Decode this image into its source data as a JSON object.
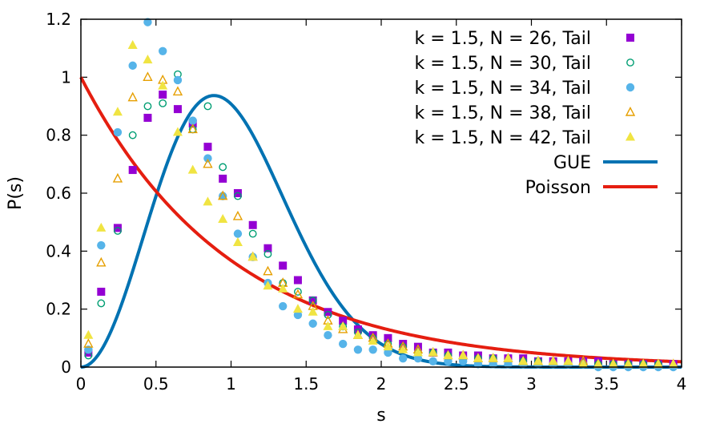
{
  "chart_data": {
    "type": "scatter",
    "title": "",
    "xlabel": "s",
    "ylabel": "P(s)",
    "xlim": [
      0,
      4
    ],
    "ylim": [
      0,
      1.2
    ],
    "xticks": [
      0,
      0.5,
      1,
      1.5,
      2,
      2.5,
      3,
      3.5,
      4
    ],
    "xtick_labels": [
      "0",
      "0.5",
      "1",
      "1.5",
      "2",
      "2.5",
      "3",
      "3.5",
      "4"
    ],
    "yticks": [
      0,
      0.2,
      0.4,
      0.6,
      0.8,
      1,
      1.2
    ],
    "ytick_labels": [
      "0",
      "0.2",
      "0.4",
      "0.6",
      "0.8",
      "1",
      "1.2"
    ],
    "legend_position": "top-right",
    "x": [
      0.05,
      0.135,
      0.245,
      0.345,
      0.445,
      0.545,
      0.645,
      0.745,
      0.845,
      0.945,
      1.045,
      1.145,
      1.245,
      1.345,
      1.445,
      1.545,
      1.645,
      1.745,
      1.845,
      1.945,
      2.045,
      2.145,
      2.245,
      2.345,
      2.445,
      2.545,
      2.645,
      2.745,
      2.845,
      2.945,
      3.045,
      3.145,
      3.245,
      3.345,
      3.445,
      3.545,
      3.645,
      3.745,
      3.845,
      3.945
    ],
    "series": [
      {
        "name": "k = 1.5, N = 26, Tail",
        "marker": "square-filled",
        "color": "#9400d3",
        "values": [
          0.05,
          0.26,
          0.48,
          0.68,
          0.86,
          0.94,
          0.89,
          0.84,
          0.76,
          0.65,
          0.6,
          0.49,
          0.41,
          0.35,
          0.3,
          0.23,
          0.19,
          0.16,
          0.13,
          0.11,
          0.1,
          0.08,
          0.07,
          0.05,
          0.05,
          0.04,
          0.04,
          0.03,
          0.03,
          0.03,
          0.02,
          0.02,
          0.02,
          0.02,
          0.02,
          0.01,
          0.01,
          0.01,
          0.01,
          0.01
        ]
      },
      {
        "name": "k = 1.5, N = 30, Tail",
        "marker": "circle-open",
        "color": "#009e73",
        "values": [
          0.04,
          0.22,
          0.47,
          0.8,
          0.9,
          0.91,
          1.01,
          0.82,
          0.9,
          0.69,
          0.59,
          0.46,
          0.39,
          0.29,
          0.26,
          0.23,
          0.18,
          0.14,
          0.12,
          0.1,
          0.08,
          0.07,
          0.05,
          0.05,
          0.04,
          0.03,
          0.03,
          0.03,
          0.02,
          0.02,
          0.02,
          0.01,
          0.01,
          0.01,
          0.01,
          0.01,
          0.01,
          0.01,
          0.01,
          0.0
        ]
      },
      {
        "name": "k = 1.5, N = 34, Tail",
        "marker": "circle-filled",
        "color": "#56b4e9",
        "values": [
          0.06,
          0.42,
          0.81,
          1.04,
          1.19,
          1.09,
          0.99,
          0.85,
          0.72,
          0.59,
          0.46,
          0.38,
          0.29,
          0.21,
          0.18,
          0.15,
          0.11,
          0.08,
          0.06,
          0.06,
          0.05,
          0.03,
          0.03,
          0.02,
          0.02,
          0.02,
          0.01,
          0.01,
          0.01,
          0.01,
          0.01,
          0.01,
          0.01,
          0.01,
          0.0,
          0.0,
          0.0,
          0.0,
          0.0,
          0.0
        ]
      },
      {
        "name": "k = 1.5, N = 38, Tail",
        "marker": "triangle-open",
        "color": "#e69f00",
        "values": [
          0.08,
          0.36,
          0.65,
          0.93,
          1.0,
          0.99,
          0.95,
          0.82,
          0.7,
          0.59,
          0.52,
          0.38,
          0.33,
          0.29,
          0.25,
          0.21,
          0.16,
          0.13,
          0.11,
          0.1,
          0.08,
          0.07,
          0.06,
          0.05,
          0.04,
          0.04,
          0.03,
          0.03,
          0.03,
          0.02,
          0.02,
          0.02,
          0.02,
          0.02,
          0.01,
          0.01,
          0.01,
          0.01,
          0.01,
          0.01
        ]
      },
      {
        "name": "k = 1.5, N = 42, Tail",
        "marker": "triangle-filled",
        "color": "#f0e442",
        "values": [
          0.11,
          0.48,
          0.88,
          1.11,
          1.06,
          0.97,
          0.81,
          0.68,
          0.57,
          0.51,
          0.43,
          0.38,
          0.28,
          0.27,
          0.2,
          0.19,
          0.14,
          0.14,
          0.11,
          0.09,
          0.07,
          0.06,
          0.05,
          0.05,
          0.04,
          0.04,
          0.03,
          0.03,
          0.03,
          0.02,
          0.02,
          0.02,
          0.02,
          0.01,
          0.01,
          0.01,
          0.01,
          0.01,
          0.01,
          0.01
        ]
      }
    ],
    "curves": [
      {
        "name": "GUE",
        "type": "line",
        "formula": "P(s) = (32/pi^2) s^2 exp(-4 s^2 / pi)",
        "color": "#0072b2"
      },
      {
        "name": "Poisson",
        "type": "line",
        "formula": "P(s) = exp(-s)",
        "color": "#e51e10"
      }
    ]
  }
}
